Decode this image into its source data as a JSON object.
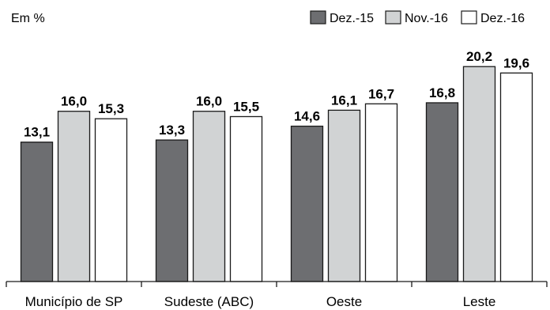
{
  "chart_data": {
    "type": "bar",
    "unit_label": "Em %",
    "categories": [
      "Município de SP",
      "Sudeste (ABC)",
      "Oeste",
      "Leste"
    ],
    "series": [
      {
        "name": "Dez.-15",
        "values": [
          13.1,
          13.3,
          14.6,
          16.8
        ],
        "labels": [
          "13,1",
          "13,3",
          "14,6",
          "16,8"
        ],
        "color": "#6d6e71"
      },
      {
        "name": "Nov.-16",
        "values": [
          16.0,
          16.0,
          16.1,
          20.2
        ],
        "labels": [
          "16,0",
          "16,0",
          "16,1",
          "20,2"
        ],
        "color": "#d1d3d4"
      },
      {
        "name": "Dez.-16",
        "values": [
          15.3,
          15.5,
          16.7,
          19.6
        ],
        "labels": [
          "15,3",
          "15,5",
          "16,7",
          "19,6"
        ],
        "color": "#ffffff"
      }
    ],
    "ylim": [
      0,
      22
    ],
    "legend_position": "top-right",
    "grid": false
  }
}
